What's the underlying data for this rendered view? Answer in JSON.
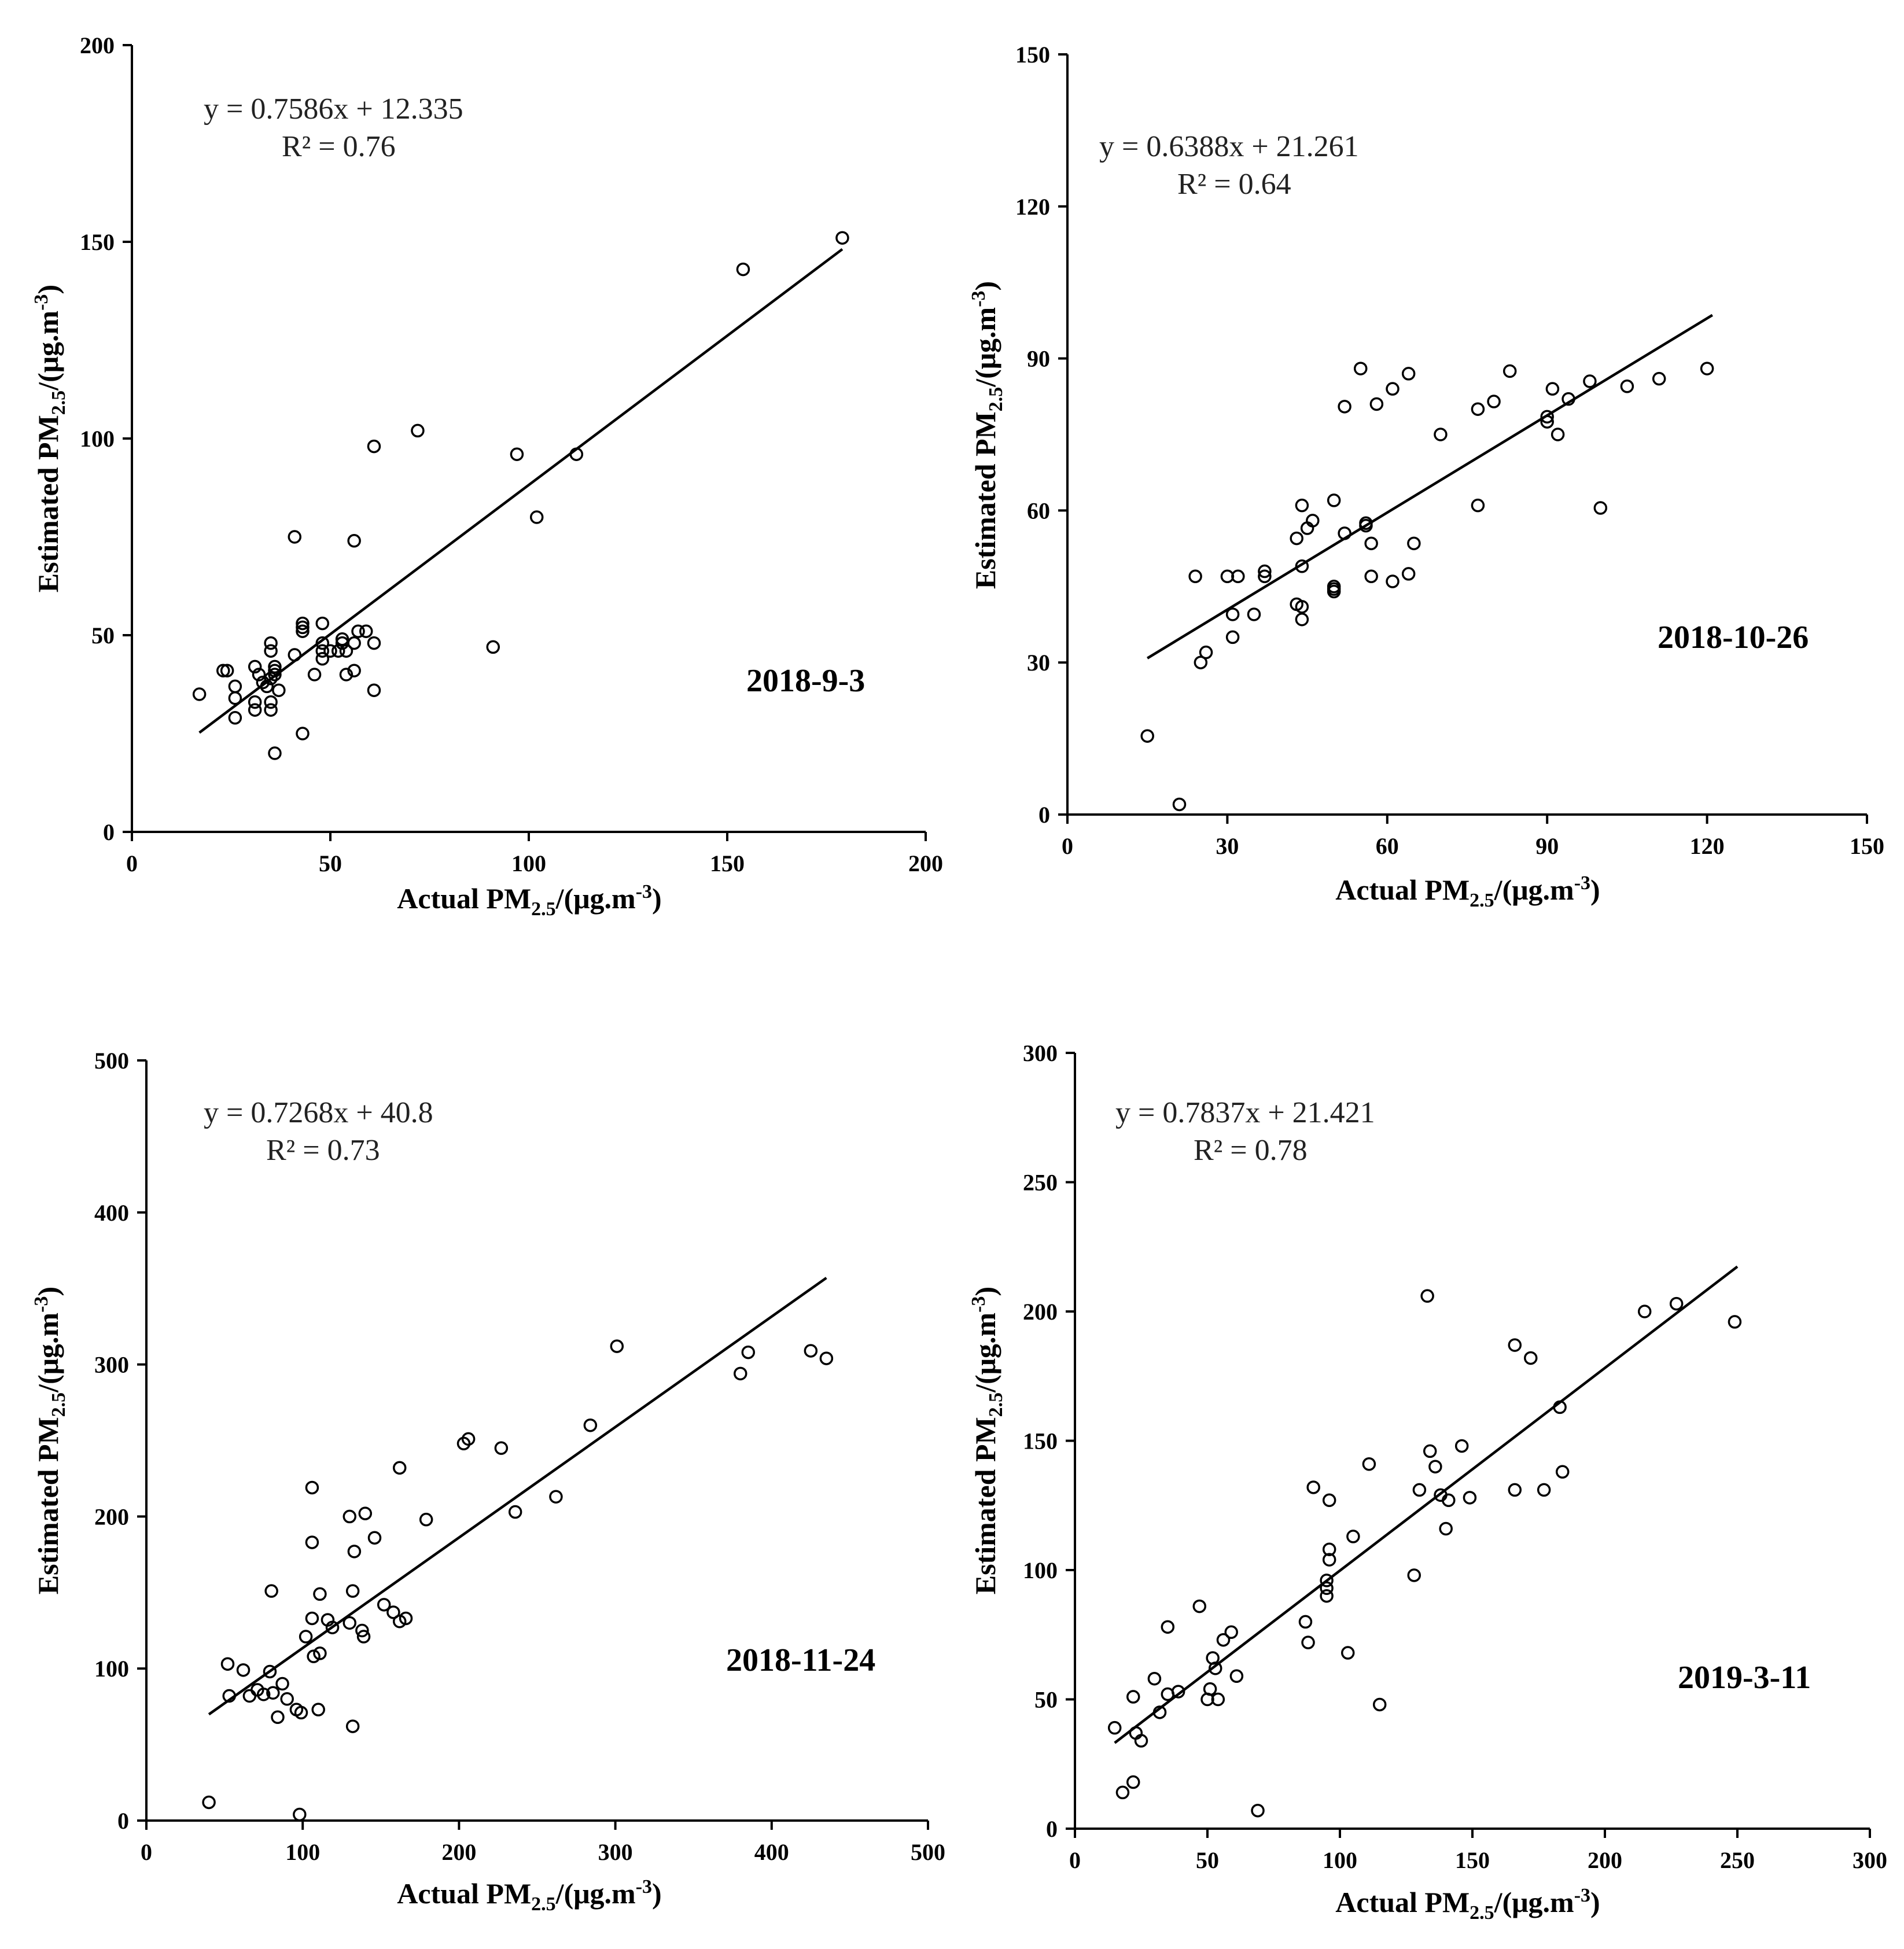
{
  "chart_data": [
    {
      "type": "scatter",
      "date_label": "2018-9-3",
      "equation": "y = 0.7586x + 12.335",
      "r2_text": "R² = 0.76",
      "xlabel": {
        "main": "Actual PM",
        "sub": "2.5",
        "unit": "/(μg.m",
        "sup": "-3",
        "close": ")"
      },
      "ylabel": {
        "main": "Estimated PM",
        "sub": "2.5",
        "unit": "/(μg.m",
        "sup": "-3",
        "close": ")"
      },
      "xlim": [
        0,
        200
      ],
      "ylim": [
        0,
        200
      ],
      "xticks": [
        0,
        50,
        100,
        150,
        200
      ],
      "yticks": [
        0,
        50,
        100,
        150,
        200
      ],
      "fit": {
        "slope": 0.7586,
        "intercept": 12.335,
        "x_range": [
          17,
          179
        ]
      },
      "points": [
        [
          17,
          35
        ],
        [
          23,
          41
        ],
        [
          24,
          41
        ],
        [
          26,
          37
        ],
        [
          26,
          34
        ],
        [
          26,
          29
        ],
        [
          31,
          42
        ],
        [
          31,
          33
        ],
        [
          31,
          31
        ],
        [
          32,
          40
        ],
        [
          33,
          38
        ],
        [
          34,
          37
        ],
        [
          35,
          39
        ],
        [
          35,
          46
        ],
        [
          35,
          48
        ],
        [
          35,
          33
        ],
        [
          35,
          31
        ],
        [
          36,
          41
        ],
        [
          36,
          42
        ],
        [
          36,
          40
        ],
        [
          36,
          20
        ],
        [
          37,
          36
        ],
        [
          41,
          75
        ],
        [
          41,
          45
        ],
        [
          43,
          53
        ],
        [
          43,
          52
        ],
        [
          43,
          51
        ],
        [
          43,
          25
        ],
        [
          46,
          40
        ],
        [
          48,
          53
        ],
        [
          48,
          48
        ],
        [
          48,
          46
        ],
        [
          48,
          44
        ],
        [
          50,
          46
        ],
        [
          52,
          46
        ],
        [
          53,
          49
        ],
        [
          53,
          48
        ],
        [
          54,
          46
        ],
        [
          54,
          40
        ],
        [
          56,
          74
        ],
        [
          56,
          41
        ],
        [
          56,
          48
        ],
        [
          57,
          51
        ],
        [
          59,
          51
        ],
        [
          61,
          98
        ],
        [
          61,
          48
        ],
        [
          61,
          36
        ],
        [
          72,
          102
        ],
        [
          91,
          47
        ],
        [
          97,
          96
        ],
        [
          102,
          80
        ],
        [
          112,
          96
        ],
        [
          154,
          143
        ],
        [
          179,
          151
        ]
      ]
    },
    {
      "type": "scatter",
      "date_label": "2018-10-26",
      "equation": "y = 0.6388x + 21.261",
      "r2_text": "R² = 0.64",
      "xlabel": {
        "main": "Actual PM",
        "sub": "2.5",
        "unit": "/(μg.m",
        "sup": "-3",
        "close": ")"
      },
      "ylabel": {
        "main": "Estimated PM",
        "sub": "2.5",
        "unit": "/(μg.m",
        "sup": "-3",
        "close": ")"
      },
      "xlim": [
        0,
        150
      ],
      "ylim": [
        0,
        150
      ],
      "xticks": [
        0,
        30,
        60,
        90,
        120,
        150
      ],
      "yticks": [
        0,
        30,
        60,
        90,
        120,
        150
      ],
      "fit": {
        "slope": 0.6388,
        "intercept": 21.261,
        "x_range": [
          15,
          121
        ]
      },
      "points": [
        [
          15,
          15.5
        ],
        [
          21,
          2
        ],
        [
          24,
          47
        ],
        [
          25,
          30
        ],
        [
          26,
          32
        ],
        [
          30,
          47
        ],
        [
          31,
          39.5
        ],
        [
          31,
          35
        ],
        [
          32,
          47
        ],
        [
          35,
          39.5
        ],
        [
          37,
          48
        ],
        [
          37,
          47
        ],
        [
          43,
          54.5
        ],
        [
          43,
          41.5
        ],
        [
          44,
          61
        ],
        [
          44,
          49
        ],
        [
          44,
          38.5
        ],
        [
          44,
          41
        ],
        [
          45,
          56.5
        ],
        [
          46,
          58
        ],
        [
          50,
          62
        ],
        [
          50,
          45
        ],
        [
          50,
          44.5
        ],
        [
          50,
          44
        ],
        [
          52,
          55.5
        ],
        [
          52,
          80.5
        ],
        [
          55,
          88
        ],
        [
          56,
          57.5
        ],
        [
          56,
          57
        ],
        [
          57,
          53.5
        ],
        [
          57,
          47
        ],
        [
          58,
          81
        ],
        [
          61,
          46
        ],
        [
          61,
          84
        ],
        [
          64,
          47.5
        ],
        [
          64,
          87
        ],
        [
          65,
          53.5
        ],
        [
          70,
          75
        ],
        [
          77,
          61
        ],
        [
          77,
          80
        ],
        [
          80,
          81.5
        ],
        [
          83,
          87.5
        ],
        [
          90,
          78.5
        ],
        [
          90,
          77.5
        ],
        [
          91,
          84
        ],
        [
          92,
          75
        ],
        [
          94,
          82
        ],
        [
          98,
          85.5
        ],
        [
          100,
          60.5
        ],
        [
          105,
          84.5
        ],
        [
          111,
          86
        ],
        [
          120,
          88
        ]
      ]
    },
    {
      "type": "scatter",
      "date_label": "2018-11-24",
      "equation": "y = 0.7268x + 40.8",
      "r2_text": "R² = 0.73",
      "xlabel": {
        "main": "Actual PM",
        "sub": "2.5",
        "unit": "/(μg.m",
        "sup": "-3",
        "close": ")"
      },
      "ylabel": {
        "main": "Estimated PM",
        "sub": "2.5",
        "unit": "/(μg.m",
        "sup": "-3",
        "close": ")"
      },
      "xlim": [
        0,
        500
      ],
      "ylim": [
        0,
        500
      ],
      "xticks": [
        0,
        100,
        200,
        300,
        400,
        500
      ],
      "yticks": [
        0,
        100,
        200,
        300,
        400,
        500
      ],
      "fit": {
        "slope": 0.7268,
        "intercept": 40.8,
        "x_range": [
          40,
          435
        ]
      },
      "points": [
        [
          40,
          12
        ],
        [
          52,
          103
        ],
        [
          53,
          82
        ],
        [
          62,
          99
        ],
        [
          66,
          82
        ],
        [
          71,
          86
        ],
        [
          75,
          83
        ],
        [
          79,
          98
        ],
        [
          80,
          151
        ],
        [
          81,
          84
        ],
        [
          84,
          68
        ],
        [
          87,
          90
        ],
        [
          90,
          80
        ],
        [
          96,
          73
        ],
        [
          98,
          4
        ],
        [
          99,
          71
        ],
        [
          102,
          121
        ],
        [
          106,
          183
        ],
        [
          106,
          133
        ],
        [
          106,
          219
        ],
        [
          107,
          108
        ],
        [
          110,
          73
        ],
        [
          111,
          149
        ],
        [
          111,
          110
        ],
        [
          116,
          132
        ],
        [
          119,
          127
        ],
        [
          130,
          130
        ],
        [
          130,
          200
        ],
        [
          132,
          151
        ],
        [
          132,
          62
        ],
        [
          133,
          177
        ],
        [
          138,
          125
        ],
        [
          139,
          121
        ],
        [
          140,
          202
        ],
        [
          146,
          186
        ],
        [
          152,
          142
        ],
        [
          158,
          137
        ],
        [
          162,
          232
        ],
        [
          162,
          131
        ],
        [
          166,
          133
        ],
        [
          179,
          198
        ],
        [
          203,
          248
        ],
        [
          206,
          251
        ],
        [
          227,
          245
        ],
        [
          236,
          203
        ],
        [
          262,
          213
        ],
        [
          284,
          260
        ],
        [
          301,
          312
        ],
        [
          380,
          294
        ],
        [
          385,
          308
        ],
        [
          425,
          309
        ],
        [
          435,
          304
        ]
      ]
    },
    {
      "type": "scatter",
      "date_label": "2019-3-11",
      "equation": "y = 0.7837x + 21.421",
      "r2_text": "R² = 0.78",
      "xlabel": {
        "main": "Actual PM",
        "sub": "2.5",
        "unit": "/(μg.m",
        "sup": "-3",
        "close": ")"
      },
      "ylabel": {
        "main": "Estimated PM",
        "sub": "2.5",
        "unit": "/(μg.m",
        "sup": "-3",
        "close": ")"
      },
      "xlim": [
        0,
        300
      ],
      "ylim": [
        0,
        300
      ],
      "xticks": [
        0,
        50,
        100,
        150,
        200,
        250,
        300
      ],
      "yticks": [
        0,
        50,
        100,
        150,
        200,
        250,
        300
      ],
      "fit": {
        "slope": 0.7837,
        "intercept": 21.421,
        "x_range": [
          15,
          250
        ]
      },
      "points": [
        [
          15,
          39
        ],
        [
          18,
          14
        ],
        [
          22,
          18
        ],
        [
          22,
          51
        ],
        [
          23,
          37
        ],
        [
          25,
          34
        ],
        [
          30,
          58
        ],
        [
          32,
          45
        ],
        [
          35,
          52
        ],
        [
          35,
          78
        ],
        [
          39,
          53
        ],
        [
          47,
          86
        ],
        [
          50,
          50
        ],
        [
          51,
          54
        ],
        [
          52,
          66
        ],
        [
          53,
          62
        ],
        [
          54,
          50
        ],
        [
          56,
          73
        ],
        [
          59,
          76
        ],
        [
          61,
          59
        ],
        [
          69,
          7
        ],
        [
          87,
          80
        ],
        [
          88,
          72
        ],
        [
          90,
          132
        ],
        [
          95,
          96
        ],
        [
          95,
          93
        ],
        [
          95,
          90
        ],
        [
          96,
          127
        ],
        [
          96,
          108
        ],
        [
          96,
          104
        ],
        [
          103,
          68
        ],
        [
          105,
          113
        ],
        [
          111,
          141
        ],
        [
          115,
          48
        ],
        [
          128,
          98
        ],
        [
          130,
          131
        ],
        [
          133,
          206
        ],
        [
          134,
          146
        ],
        [
          136,
          140
        ],
        [
          138,
          129
        ],
        [
          140,
          116
        ],
        [
          141,
          127
        ],
        [
          146,
          148
        ],
        [
          149,
          128
        ],
        [
          166,
          187
        ],
        [
          166,
          131
        ],
        [
          172,
          182
        ],
        [
          177,
          131
        ],
        [
          183,
          163
        ],
        [
          184,
          138
        ],
        [
          215,
          200
        ],
        [
          227,
          203
        ],
        [
          249,
          196
        ]
      ]
    }
  ]
}
